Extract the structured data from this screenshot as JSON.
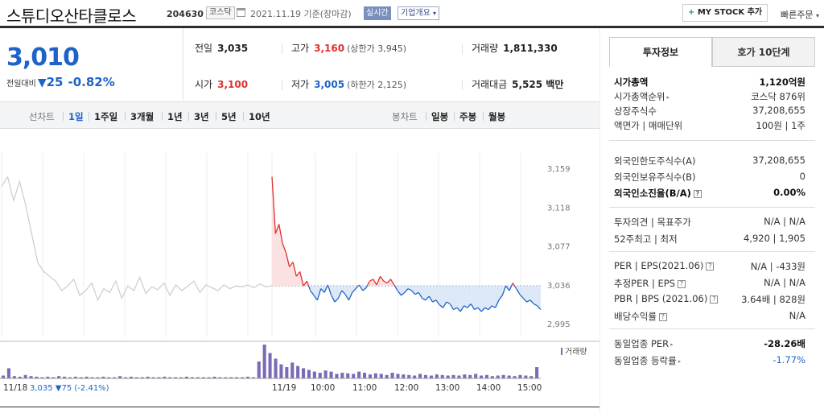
{
  "header": {
    "stock_name": "스튜디오산타클로스",
    "stock_code": "204630",
    "market": "코스닥",
    "date_text": "2021.11.19 기준(장마감)",
    "realtime_label": "실시간",
    "company_summary_label": "기업개요",
    "my_stock_label": "MY STOCK 추가",
    "quick_order_label": "빠른주문"
  },
  "price": {
    "current": "3,010",
    "change_label": "전일대비",
    "change_value": "25",
    "change_pct": "-0.82%"
  },
  "summary": {
    "prev_close_label": "전일",
    "prev_close": "3,035",
    "high_label": "고가",
    "high": "3,160",
    "upper_limit": "(상한가 3,945)",
    "volume_label": "거래량",
    "volume": "1,811,330",
    "open_label": "시가",
    "open": "3,100",
    "low_label": "저가",
    "low": "3,005",
    "lower_limit": "(하한가 2,125)",
    "amount_label": "거래대금",
    "amount": "5,525 백만"
  },
  "toolbar": {
    "line_label": "선차트",
    "line_periods": [
      "1일",
      "1주일",
      "3개월",
      "1년",
      "3년",
      "5년",
      "10년"
    ],
    "selected_period": "1일",
    "candle_label": "봉차트",
    "candle_periods": [
      "일봉",
      "주봉",
      "월봉"
    ]
  },
  "chart_data": {
    "type": "line",
    "y_ticks": [
      "3,159",
      "3,118",
      "3,077",
      "3,036",
      "2,995"
    ],
    "ylim": [
      2985,
      3170
    ],
    "reference_price": 3035,
    "x_ticks": [
      "11/18",
      "11/19",
      "10:00",
      "11:00",
      "12:00",
      "13:00",
      "14:00",
      "15:00"
    ],
    "prev_day_note": "3,035 ▼75 (-2.41%)",
    "volume_legend": "거래량",
    "colors": {
      "up": "#e0312d",
      "down": "#1e63c9",
      "prev": "#cfcfcf",
      "volume": "#7b6bb7"
    },
    "prev_day_series": [
      3140,
      3150,
      3125,
      3145,
      3120,
      3090,
      3060,
      3050,
      3045,
      3040,
      3030,
      3035,
      3042,
      3025,
      3030,
      3038,
      3020,
      3032,
      3028,
      3040,
      3022,
      3035,
      3030,
      3044,
      3027,
      3034,
      3031,
      3038,
      3025,
      3036,
      3030,
      3035,
      3040,
      3028,
      3036,
      3033,
      3030,
      3036,
      3032,
      3035,
      3034,
      3036,
      3033,
      3037,
      3034,
      3035
    ],
    "today_series": [
      3150,
      3090,
      3100,
      3080,
      3070,
      3055,
      3060,
      3045,
      3050,
      3035,
      3040,
      3030,
      3025,
      3020,
      3032,
      3028,
      3036,
      3025,
      3018,
      3022,
      3030,
      3026,
      3020,
      3028,
      3032,
      3036,
      3030,
      3033,
      3040,
      3042,
      3036,
      3045,
      3040,
      3038,
      3042,
      3036,
      3030,
      3025,
      3028,
      3032,
      3030,
      3026,
      3028,
      3022,
      3020,
      3024,
      3018,
      3020,
      3015,
      3012,
      3018,
      3016,
      3010,
      3012,
      3008,
      3014,
      3012,
      3016,
      3010,
      3012,
      3008,
      3012,
      3010,
      3014,
      3012,
      3020,
      3025,
      3035,
      3030,
      3038,
      3032,
      3026,
      3022,
      3018,
      3020,
      3016,
      3014,
      3010
    ],
    "volume_series": [
      5,
      18,
      4,
      3,
      6,
      4,
      3,
      2,
      3,
      2,
      4,
      3,
      2,
      3,
      2,
      3,
      2,
      2,
      3,
      2,
      2,
      4,
      2,
      3,
      2,
      2,
      3,
      2,
      2,
      3,
      2,
      2,
      2,
      3,
      2,
      2,
      2,
      2,
      3,
      2,
      2,
      2,
      2,
      2,
      3,
      2,
      30,
      60,
      45,
      35,
      25,
      20,
      28,
      22,
      18,
      15,
      12,
      10,
      14,
      12,
      8,
      10,
      9,
      8,
      12,
      10,
      7,
      9,
      8,
      6,
      10,
      8,
      7,
      6,
      5,
      8,
      6,
      5,
      7,
      6,
      5,
      6,
      5,
      7,
      6,
      8,
      5,
      6,
      4,
      5,
      6,
      5,
      4,
      6,
      5,
      4,
      20
    ]
  },
  "invest_info": {
    "tab_info": "투자정보",
    "tab_hoga": "호가 10단계",
    "market_cap_label": "시가총액",
    "market_cap": "1,120억원",
    "rank_label": "시가총액순위",
    "rank": "코스닥 876위",
    "shares_label": "상장주식수",
    "shares": "37,208,655",
    "par_label": "액면가 | 매매단위",
    "par": "100원 | 1주",
    "foreign_limit_label": "외국인한도주식수(A)",
    "foreign_limit": "37,208,655",
    "foreign_hold_label": "외국인보유주식수(B)",
    "foreign_hold": "0",
    "foreign_ratio_label": "외국인소진율(B/A)",
    "foreign_ratio": "0.00%",
    "opinion_label": "투자의견 | 목표주가",
    "opinion": "N/A | N/A",
    "range_label": "52주최고 | 최저",
    "range": "4,920 | 1,905",
    "per_label": "PER | EPS(2021.06)",
    "per": "N/A | -433원",
    "est_per_label": "추정PER | EPS",
    "est_per": "N/A | N/A",
    "pbr_label": "PBR | BPS (2021.06)",
    "pbr": "3.64배 | 828원",
    "div_label": "배당수익률",
    "div": "N/A",
    "ind_per_label": "동일업종 PER",
    "ind_per": "-28.26배",
    "ind_rate_label": "동일업종 등락률",
    "ind_rate": "-1.77%"
  }
}
